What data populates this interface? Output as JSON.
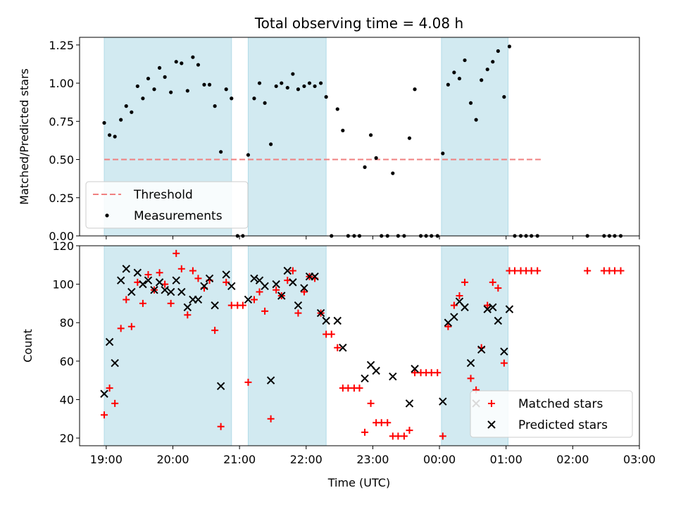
{
  "figure": {
    "title": "Total observing time = 4.08 h",
    "xlabel": "Time (UTC)"
  },
  "chart_data": [
    {
      "type": "scatter",
      "ylabel": "Matched/Predicted stars",
      "ylim": [
        0,
        1.3
      ],
      "yticks": [
        "0.00",
        "0.25",
        "0.50",
        "0.75",
        "1.00",
        "1.25"
      ],
      "ytick_values": [
        0,
        0.25,
        0.5,
        0.75,
        1.0,
        1.25
      ],
      "xlim": [
        18.6,
        27.0
      ],
      "xticks": [
        "19:00",
        "20:00",
        "21:00",
        "22:00",
        "23:00",
        "00:00",
        "01:00",
        "02:00",
        "03:00"
      ],
      "xtick_values": [
        19,
        20,
        21,
        22,
        23,
        24,
        25,
        26,
        27
      ],
      "shaded_intervals": [
        [
          18.97,
          20.88
        ],
        [
          21.13,
          22.3
        ],
        [
          24.03,
          25.03
        ]
      ],
      "threshold": {
        "name": "Threshold",
        "y": 0.5,
        "x": [
          18.97,
          25.52
        ],
        "color": "#f08080"
      },
      "legend": {
        "position": "lower-left"
      },
      "series": [
        {
          "name": "Measurements",
          "color": "#000000",
          "x": [
            18.97,
            19.05,
            19.13,
            19.22,
            19.3,
            19.38,
            19.47,
            19.55,
            19.63,
            19.72,
            19.8,
            19.88,
            19.97,
            20.05,
            20.13,
            20.22,
            20.3,
            20.38,
            20.47,
            20.55,
            20.63,
            20.72,
            20.8,
            20.88,
            20.97,
            21.05,
            21.13,
            21.22,
            21.3,
            21.38,
            21.47,
            21.55,
            21.63,
            21.72,
            21.8,
            21.88,
            21.97,
            22.05,
            22.13,
            22.22,
            22.3,
            22.38,
            22.47,
            22.55,
            22.63,
            22.72,
            22.8,
            22.88,
            22.97,
            23.05,
            23.13,
            23.22,
            23.3,
            23.38,
            23.47,
            23.55,
            23.63,
            23.72,
            23.8,
            23.88,
            23.97,
            24.05,
            24.13,
            24.22,
            24.3,
            24.38,
            24.47,
            24.55,
            24.63,
            24.72,
            24.8,
            24.88,
            24.97,
            25.05,
            25.13,
            25.22,
            25.3,
            25.38,
            25.47,
            26.22,
            26.47,
            26.55,
            26.63,
            26.72
          ],
          "y": [
            0.74,
            0.66,
            0.65,
            0.76,
            0.85,
            0.81,
            0.98,
            0.9,
            1.03,
            0.96,
            1.1,
            1.04,
            0.94,
            1.14,
            1.13,
            0.95,
            1.17,
            1.12,
            0.99,
            0.99,
            0.85,
            0.55,
            0.96,
            0.9,
            0.0,
            0.0,
            0.53,
            0.9,
            1.0,
            0.87,
            0.6,
            0.98,
            1.0,
            0.97,
            1.06,
            0.96,
            0.98,
            1.0,
            0.98,
            1.0,
            0.91,
            0.0,
            0.83,
            0.69,
            0.0,
            0.0,
            0.0,
            0.45,
            0.66,
            0.51,
            0.0,
            0.0,
            0.41,
            0.0,
            0.0,
            0.64,
            0.96,
            0.0,
            0.0,
            0.0,
            0.0,
            0.54,
            0.99,
            1.07,
            1.03,
            1.15,
            0.87,
            0.76,
            1.02,
            1.09,
            1.14,
            1.21,
            0.91,
            1.24,
            0.0,
            0.0,
            0.0,
            0.0,
            0.0,
            0.0,
            0.0,
            0.0,
            0.0,
            0.0
          ]
        }
      ]
    },
    {
      "type": "scatter",
      "ylabel": "Count",
      "ylim": [
        16,
        120
      ],
      "yticks": [
        "20",
        "40",
        "60",
        "80",
        "100",
        "120"
      ],
      "ytick_values": [
        20,
        40,
        60,
        80,
        100,
        120
      ],
      "xlim": [
        18.6,
        27.0
      ],
      "xticks": [
        "19:00",
        "20:00",
        "21:00",
        "22:00",
        "23:00",
        "00:00",
        "01:00",
        "02:00",
        "03:00"
      ],
      "xtick_values": [
        19,
        20,
        21,
        22,
        23,
        24,
        25,
        26,
        27
      ],
      "shaded_intervals": [
        [
          18.97,
          20.88
        ],
        [
          21.13,
          22.3
        ],
        [
          24.03,
          25.03
        ]
      ],
      "legend": {
        "position": "lower-right"
      },
      "series": [
        {
          "name": "Matched stars",
          "marker": "+",
          "color": "#ff0000",
          "x": [
            18.97,
            19.05,
            19.13,
            19.22,
            19.3,
            19.38,
            19.47,
            19.55,
            19.63,
            19.72,
            19.8,
            19.88,
            19.97,
            20.05,
            20.13,
            20.22,
            20.3,
            20.38,
            20.47,
            20.55,
            20.63,
            20.72,
            20.8,
            20.88,
            20.97,
            21.05,
            21.13,
            21.22,
            21.3,
            21.38,
            21.47,
            21.55,
            21.63,
            21.72,
            21.8,
            21.88,
            21.97,
            22.05,
            22.13,
            22.22,
            22.3,
            22.38,
            22.47,
            22.55,
            22.63,
            22.72,
            22.8,
            22.88,
            22.97,
            23.05,
            23.13,
            23.22,
            23.3,
            23.38,
            23.47,
            23.55,
            23.63,
            23.72,
            23.8,
            23.88,
            23.97,
            24.05,
            24.13,
            24.22,
            24.3,
            24.38,
            24.47,
            24.55,
            24.63,
            24.72,
            24.8,
            24.88,
            24.97,
            25.05,
            25.13,
            25.22,
            25.3,
            25.38,
            25.47,
            26.22,
            26.47,
            26.55,
            26.63,
            26.72
          ],
          "y": [
            32,
            46,
            38,
            77,
            92,
            78,
            101,
            90,
            105,
            97,
            106,
            100,
            90,
            116,
            108,
            84,
            107,
            103,
            98,
            102,
            76,
            26,
            101,
            89,
            89,
            89,
            49,
            92,
            96,
            86,
            30,
            97,
            94,
            102,
            107,
            85,
            96,
            104,
            103,
            85,
            74,
            74,
            67,
            46,
            46,
            46,
            46,
            23,
            38,
            28,
            28,
            28,
            21,
            21,
            21,
            24,
            54,
            54,
            54,
            54,
            54,
            21,
            78,
            89,
            94,
            101,
            51,
            45,
            67,
            89,
            101,
            98,
            59,
            107,
            107,
            107,
            107,
            107,
            107,
            107,
            107,
            107,
            107,
            107
          ]
        },
        {
          "name": "Predicted stars",
          "marker": "x",
          "color": "#000000",
          "x": [
            18.97,
            19.05,
            19.13,
            19.22,
            19.3,
            19.38,
            19.47,
            19.55,
            19.63,
            19.72,
            19.8,
            19.88,
            19.97,
            20.05,
            20.13,
            20.22,
            20.3,
            20.38,
            20.47,
            20.55,
            20.63,
            20.72,
            20.8,
            20.88,
            21.13,
            21.22,
            21.3,
            21.38,
            21.47,
            21.55,
            21.63,
            21.72,
            21.8,
            21.88,
            21.97,
            22.05,
            22.13,
            22.22,
            22.3,
            22.47,
            22.55,
            22.88,
            22.97,
            23.05,
            23.3,
            23.55,
            23.63,
            24.05,
            24.13,
            24.22,
            24.3,
            24.38,
            24.47,
            24.55,
            24.63,
            24.72,
            24.8,
            24.88,
            24.97,
            25.05
          ],
          "y": [
            43,
            70,
            59,
            102,
            108,
            96,
            106,
            100,
            102,
            97,
            101,
            97,
            96,
            102,
            96,
            88,
            92,
            92,
            99,
            103,
            89,
            47,
            105,
            99,
            92,
            103,
            102,
            99,
            50,
            100,
            94,
            107,
            101,
            89,
            98,
            104,
            104,
            85,
            81,
            81,
            67,
            51,
            58,
            55,
            52,
            38,
            56,
            39,
            80,
            83,
            91,
            88,
            59,
            38,
            66,
            87,
            88,
            81,
            65,
            87
          ]
        }
      ]
    }
  ]
}
